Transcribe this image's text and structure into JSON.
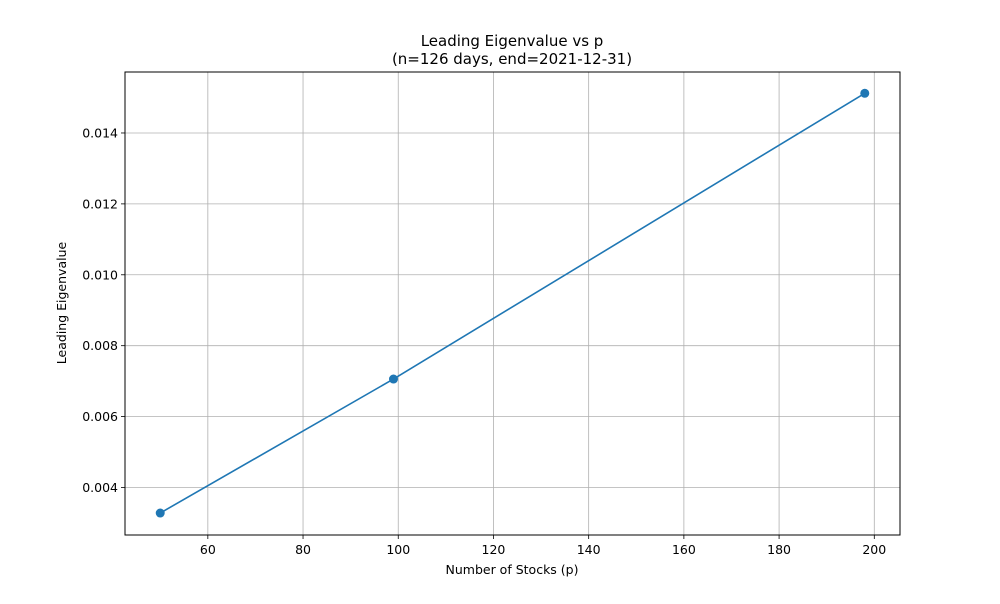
{
  "chart_data": {
    "type": "line",
    "title": "Leading Eigenvalue vs p",
    "subtitle": "(n=126 days, end=2021-12-31)",
    "xlabel": "Number of Stocks (p)",
    "ylabel": "Leading Eigenvalue",
    "xlim": [
      42.6,
      205.4
    ],
    "ylim": [
      0.00266,
      0.01572
    ],
    "xticks": [
      60,
      80,
      100,
      120,
      140,
      160,
      180,
      200
    ],
    "xtick_labels": [
      "60",
      "80",
      "100",
      "120",
      "140",
      "160",
      "180",
      "200"
    ],
    "yticks": [
      0.004,
      0.006,
      0.008,
      0.01,
      0.012,
      0.014
    ],
    "ytick_labels": [
      "0.004",
      "0.006",
      "0.008",
      "0.010",
      "0.012",
      "0.014"
    ],
    "grid": true,
    "series": [
      {
        "x": [
          50,
          99,
          198
        ],
        "y": [
          0.00328,
          0.00706,
          0.01512
        ],
        "color": "#1f77b4",
        "marker": "circle"
      }
    ]
  }
}
